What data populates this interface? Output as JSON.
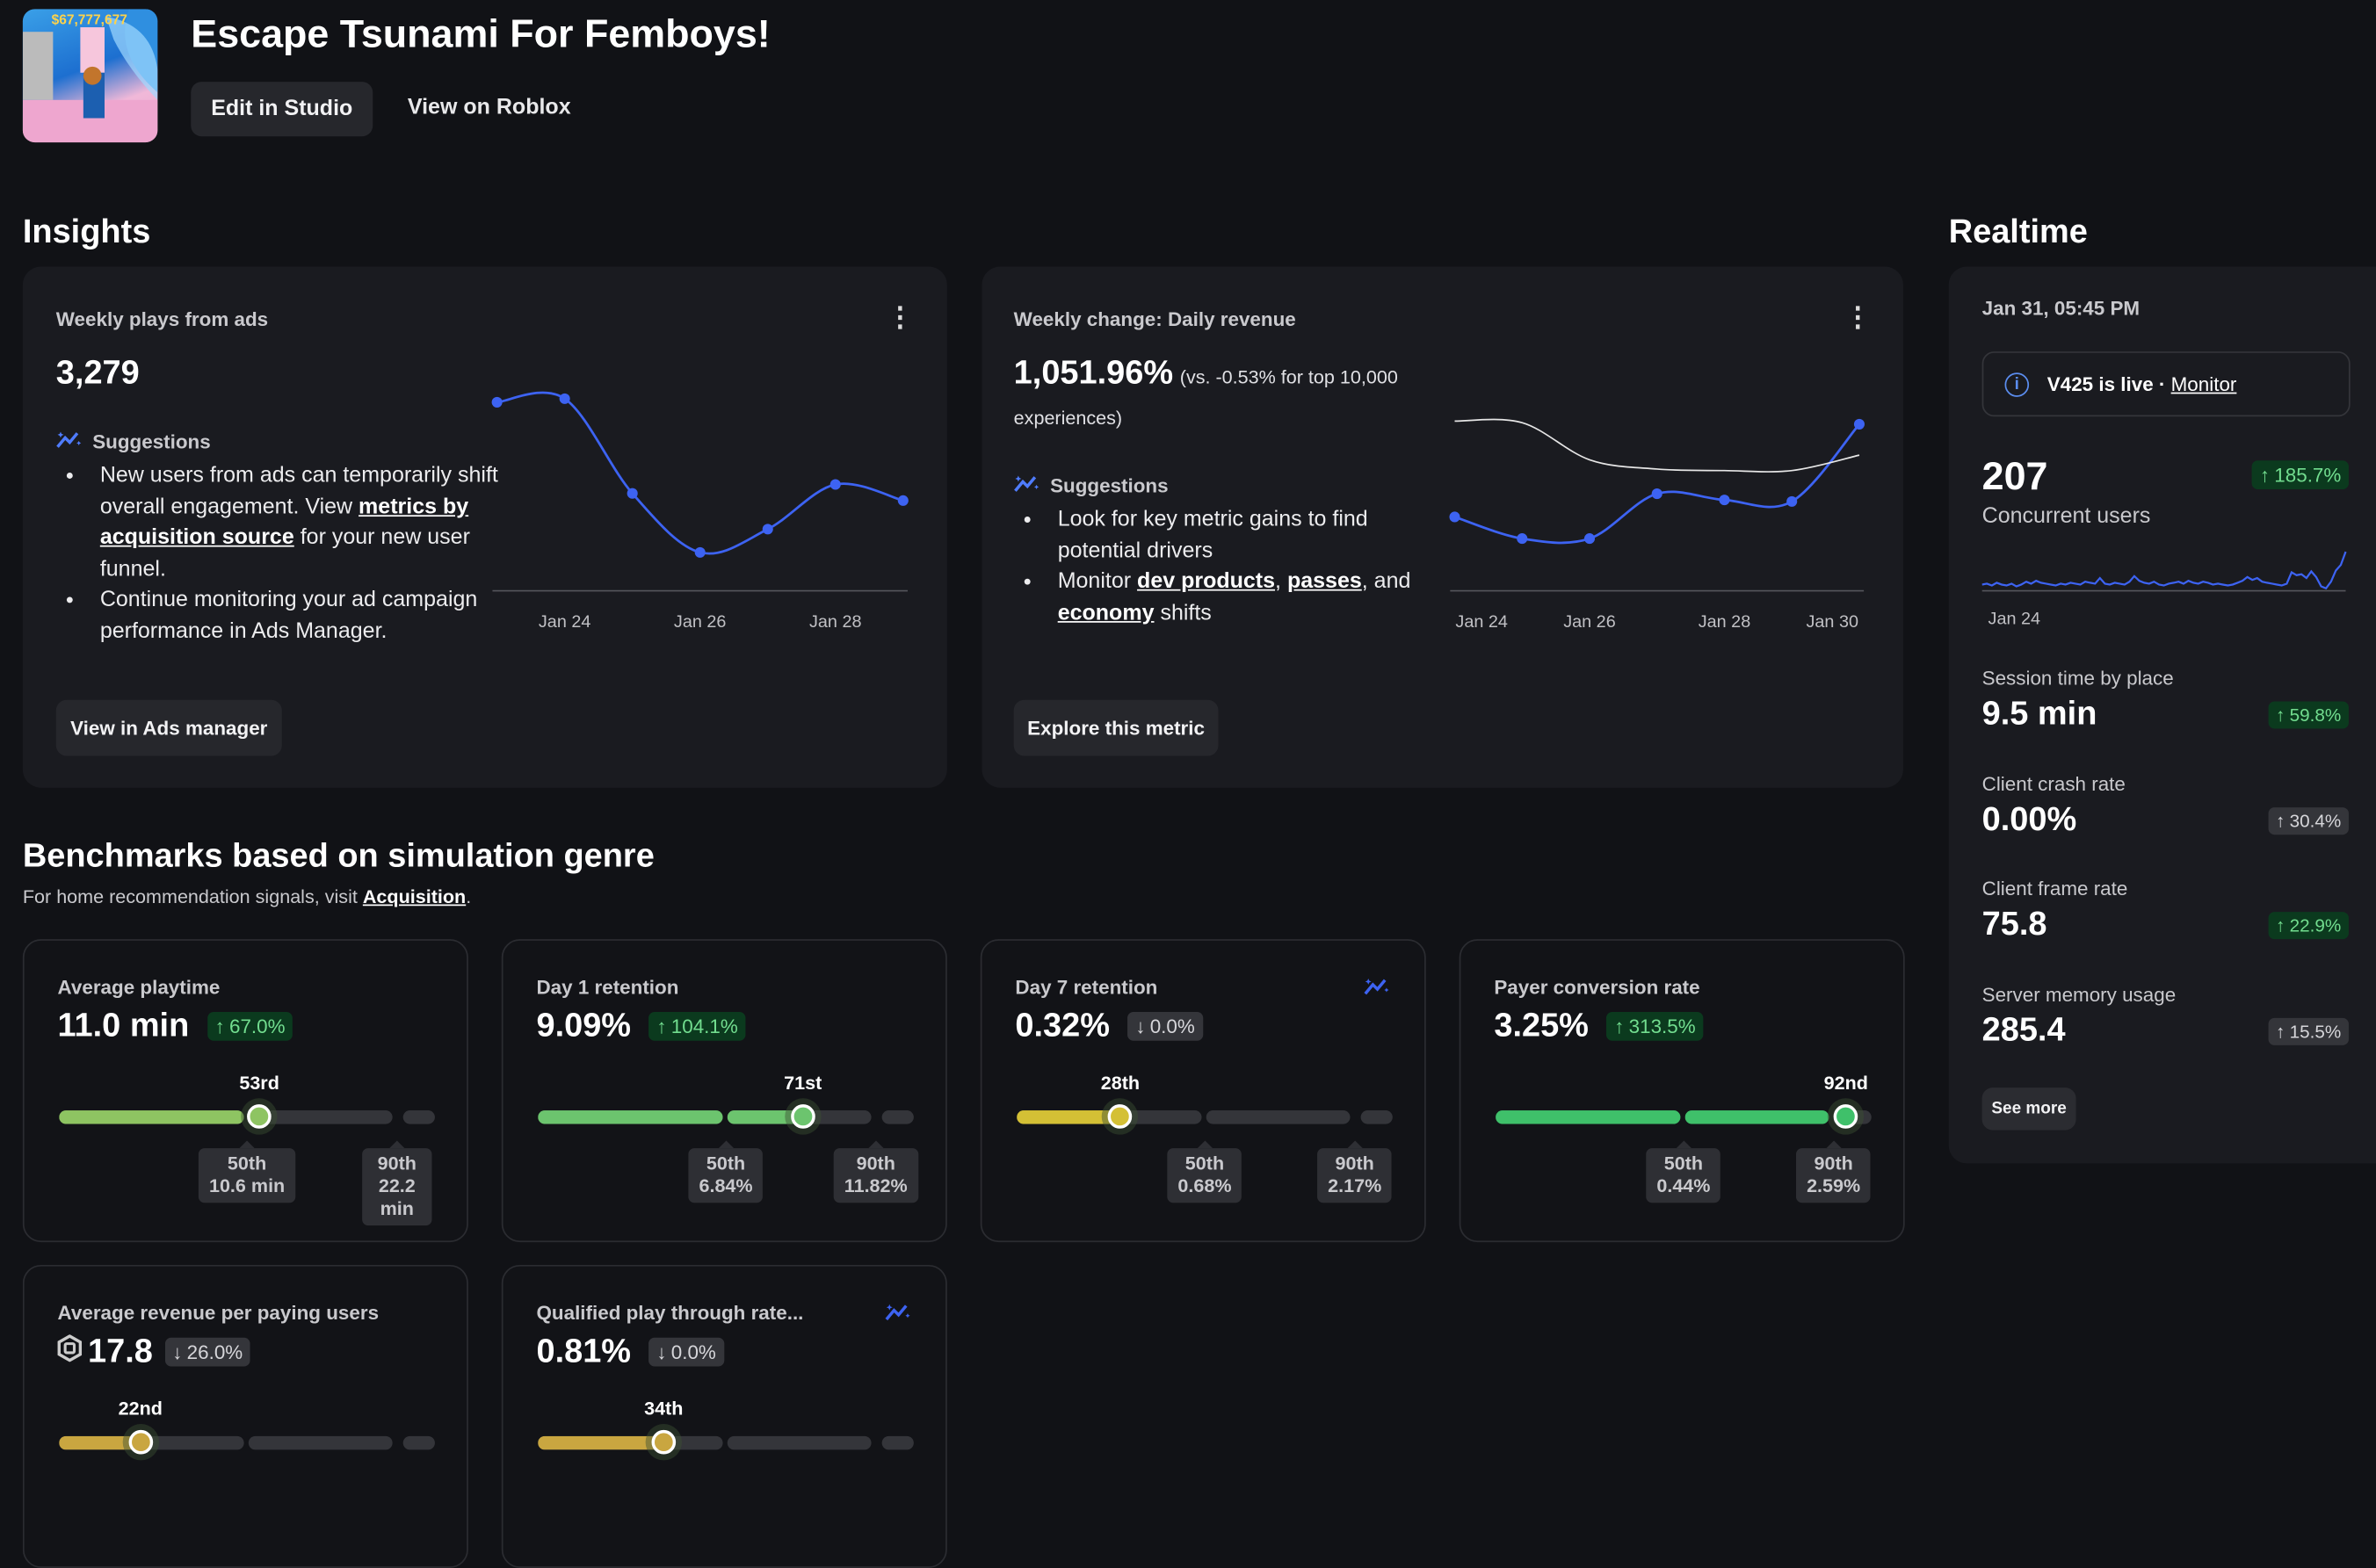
{
  "header": {
    "title": "Escape Tsunami For Femboys!",
    "thumbnail_text": "$67,777,677",
    "edit_label": "Edit in Studio",
    "view_label": "View on Roblox"
  },
  "insights": {
    "heading": "Insights",
    "cards": [
      {
        "title": "Weekly plays from ads",
        "value": "3,279",
        "suggestions_label": "Suggestions",
        "bullets": [
          [
            "New users from ads can temporarily shift overall engagement. View ",
            {
              "link": "metrics by acquisition source"
            },
            " for your new user funnel."
          ],
          [
            "Continue monitoring your ad campaign performance in Ads Manager."
          ]
        ],
        "button": "View in Ads manager"
      },
      {
        "title": "Weekly change: Daily revenue",
        "value": "1,051.96%",
        "value_note": "(vs. -0.53% for top 10,000",
        "value_note2": "experiences)",
        "suggestions_label": "Suggestions",
        "bullets": [
          [
            "Look for key metric gains to find potential drivers"
          ],
          [
            "Monitor ",
            {
              "link": "dev products"
            },
            ", ",
            {
              "link": "passes"
            },
            ", and ",
            {
              "link": "economy"
            },
            " shifts"
          ]
        ],
        "button": "Explore this metric"
      }
    ]
  },
  "chart_data": [
    {
      "type": "line",
      "x_ticks": [
        "Jan 24",
        "Jan 26",
        "Jan 28"
      ],
      "x": [
        "Jan 23",
        "Jan 24",
        "Jan 25",
        "Jan 26",
        "Jan 27",
        "Jan 28",
        "Jan 29"
      ],
      "series": [
        {
          "values": [
            97,
            99,
            46,
            13,
            26,
            51,
            42
          ],
          "color": "#3d63f2"
        }
      ]
    },
    {
      "type": "line",
      "x_ticks": [
        "Jan 24",
        "Jan 26",
        "Jan 28",
        "Jan 30"
      ],
      "x": [
        "Jan 24",
        "Jan 25",
        "Jan 26",
        "Jan 27",
        "Jan 28",
        "Jan 29",
        "Jan 30"
      ],
      "series": [
        {
          "values": [
            38,
            24,
            24,
            53,
            49,
            48,
            98
          ],
          "color": "#3d63f2"
        },
        {
          "values": [
            100,
            99,
            75,
            69,
            68,
            68,
            78
          ],
          "color": "#e6e6e6",
          "smooth_only": true
        }
      ]
    },
    {
      "type": "line",
      "x_ticks": [
        "Jan 24"
      ],
      "series": [
        {
          "values": [
            5,
            6,
            4,
            7,
            5,
            4,
            6,
            3,
            5,
            8,
            6,
            9,
            7,
            6,
            5,
            4,
            6,
            5,
            7,
            6,
            5,
            8,
            7,
            6,
            12,
            6,
            5,
            7,
            6,
            5,
            8,
            14,
            9,
            7,
            6,
            8,
            5,
            4,
            6,
            7,
            8,
            6,
            9,
            7,
            6,
            8,
            7,
            5,
            6,
            5,
            4,
            5,
            7,
            9,
            13,
            10,
            12,
            8,
            7,
            6,
            5,
            4,
            6,
            18,
            15,
            16,
            12,
            19,
            13,
            3,
            1,
            8,
            20,
            26,
            40
          ],
          "color": "#3d63f2"
        }
      ]
    }
  ],
  "realtime": {
    "heading": "Realtime",
    "timestamp": "Jan 31, 05:45 PM",
    "notice": {
      "text": "V425 is live · ",
      "link": "Monitor"
    },
    "concurrent": {
      "value": "207",
      "label": "Concurrent users",
      "change": "185.7%",
      "dir": "up",
      "tone": "up"
    },
    "metrics": [
      {
        "label": "Session time by place",
        "value": "9.5 min",
        "change": "59.8%",
        "tone": "up"
      },
      {
        "label": "Client crash rate",
        "value": "0.00%",
        "change": "30.4%",
        "tone": "neu"
      },
      {
        "label": "Client frame rate",
        "value": "75.8",
        "change": "22.9%",
        "tone": "up"
      },
      {
        "label": "Server memory usage",
        "value": "285.4",
        "change": "15.5%",
        "tone": "neu"
      }
    ],
    "see_more": "See more"
  },
  "benchmarks": {
    "heading": "Benchmarks based on simulation genre",
    "subtitle": "For home recommendation signals, visit ",
    "subtitle_link": "Acquisition",
    "subtitle_end": ".",
    "cards": [
      {
        "title": "Average playtime",
        "value": "11.0 min",
        "change": "67.0%",
        "dir": "up",
        "tone": "up",
        "percentile": 53,
        "percentile_label": "53rd",
        "p50": "10.6 min",
        "p90": "22.2 min",
        "color": "#8ec462"
      },
      {
        "title": "Day 1 retention",
        "value": "9.09%",
        "change": "104.1%",
        "dir": "up",
        "tone": "up",
        "percentile": 71,
        "percentile_label": "71st",
        "p50": "6.84%",
        "p90": "11.82%",
        "color": "#6cc46e"
      },
      {
        "title": "Day 7 retention",
        "value": "0.32%",
        "change": "0.0%",
        "dir": "down",
        "tone": "neu",
        "percentile": 28,
        "percentile_label": "28th",
        "p50": "0.68%",
        "p90": "2.17%",
        "color": "#d4c035",
        "icon": "sparkle-trend-icon"
      },
      {
        "title": "Payer conversion rate",
        "value": "3.25%",
        "change": "313.5%",
        "dir": "up",
        "tone": "up",
        "percentile": 92,
        "percentile_label": "92nd",
        "p50": "0.44%",
        "p90": "2.59%",
        "color": "#3fc06a"
      },
      {
        "title": "Average revenue per paying users",
        "value": "17.8",
        "robux": true,
        "change": "26.0%",
        "dir": "down",
        "tone": "neu",
        "percentile": 22,
        "percentile_label": "22nd",
        "color": "#c9a640"
      },
      {
        "title": "Qualified play through rate...",
        "value": "0.81%",
        "change": "0.0%",
        "dir": "down",
        "tone": "neu",
        "percentile": 34,
        "percentile_label": "34th",
        "color": "#c9a640",
        "icon": "sparkle-trend-icon"
      }
    ],
    "labels": {
      "p50": "50th",
      "p90": "90th"
    }
  }
}
